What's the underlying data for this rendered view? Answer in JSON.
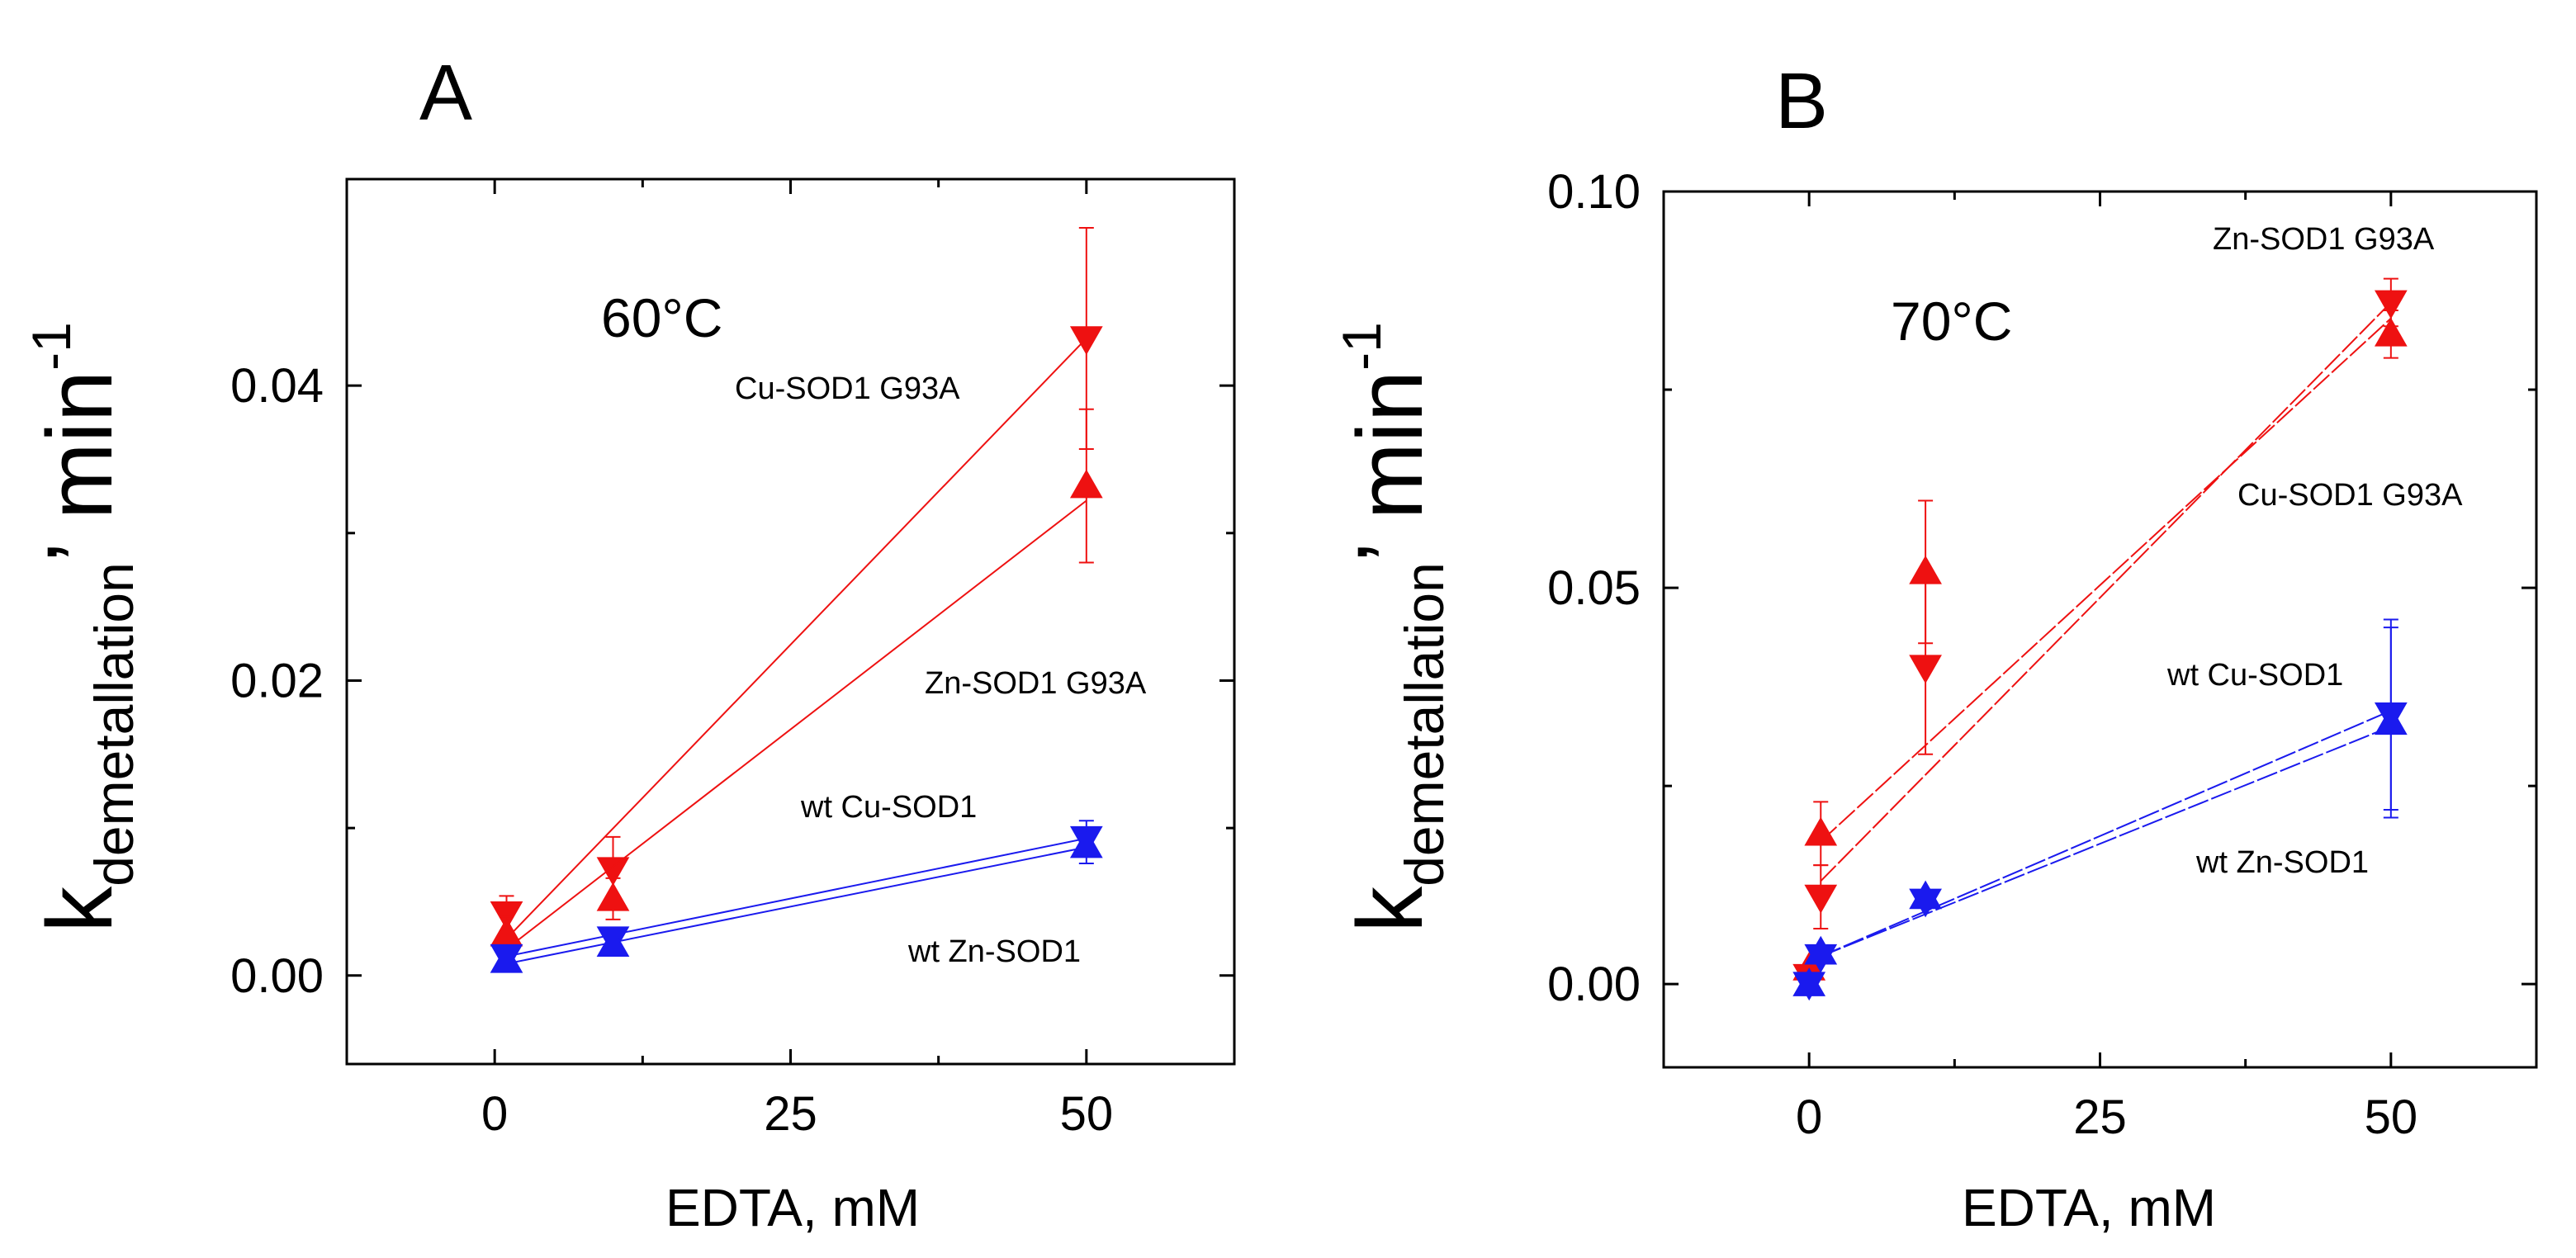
{
  "chart_data": [
    {
      "type": "scatter",
      "panel_label": "A",
      "temperature_label": "60°C",
      "xlabel": "EDTA, mM",
      "ylabel_main": "k",
      "ylabel_sub": "demetallation",
      "ylabel_unit": "’ min",
      "ylabel_exp": "-1",
      "xlim": [
        -12.5,
        62.5
      ],
      "ylim": [
        -0.006,
        0.054
      ],
      "xticks": [
        0,
        25,
        50
      ],
      "xtick_labels": [
        "0",
        "25",
        "50"
      ],
      "yticks": [
        0,
        0.02,
        0.04
      ],
      "ytick_labels": [
        "0.00",
        "0.02",
        "0.04"
      ],
      "series": [
        {
          "name": "Cu-SOD1 G93A",
          "color": "#ee1111",
          "marker": "triangle-down",
          "x": [
            1,
            10,
            50
          ],
          "y": [
            0.0042,
            0.0072,
            0.0432
          ],
          "err": [
            0.0012,
            0.0022,
            0.0075
          ],
          "fit": [
            [
              1,
              0.0025
            ],
            [
              50,
              0.0432
            ]
          ]
        },
        {
          "name": "Zn-SOD1 G93A",
          "color": "#ee1111",
          "marker": "triangle-up",
          "x": [
            1,
            10,
            50
          ],
          "y": [
            0.0028,
            0.0052,
            0.0332
          ],
          "err": [
            0.0012,
            0.0014,
            0.0052
          ],
          "fit": [
            [
              1,
              0.0018
            ],
            [
              50,
              0.0322
            ]
          ]
        },
        {
          "name": "wt Cu-SOD1",
          "color": "#1a1aee",
          "marker": "triangle-down",
          "x": [
            1,
            10,
            50
          ],
          "y": [
            0.0013,
            0.0025,
            0.0093
          ],
          "err": [
            0.0004,
            0.0004,
            0.0012
          ],
          "fit": [
            [
              1,
              0.0013
            ],
            [
              50,
              0.0093
            ]
          ]
        },
        {
          "name": "wt Zn-SOD1",
          "color": "#1a1aee",
          "marker": "triangle-up",
          "x": [
            1,
            10,
            50
          ],
          "y": [
            0.001,
            0.0021,
            0.0088
          ],
          "err": [
            0.0004,
            0.0004,
            0.0012
          ],
          "fit": [
            [
              1,
              0.0008
            ],
            [
              50,
              0.0087
            ]
          ]
        }
      ],
      "annotations": [
        {
          "text": "Cu-SOD1 G93A"
        },
        {
          "text": "Zn-SOD1 G93A"
        },
        {
          "text": "wt Cu-SOD1"
        },
        {
          "text": "wt Zn-SOD1"
        }
      ]
    },
    {
      "type": "scatter",
      "panel_label": "B",
      "temperature_label": "70°C",
      "xlabel": "EDTA, mM",
      "ylabel_main": "k",
      "ylabel_sub": "demetallation",
      "ylabel_unit": "’ min",
      "ylabel_exp": "-1",
      "xlim": [
        -12.5,
        62.5
      ],
      "ylim": [
        -0.0105,
        0.1
      ],
      "xticks": [
        0,
        25,
        50
      ],
      "xtick_labels": [
        "0",
        "25",
        "50"
      ],
      "yticks": [
        0,
        0.05,
        0.1
      ],
      "ytick_labels": [
        "0.00",
        "0.05",
        "0.10"
      ],
      "series": [
        {
          "name": "Zn-SOD1 G93A",
          "color": "#ee1111",
          "marker": "triangle-down",
          "x": [
            0,
            1,
            10,
            50
          ],
          "y": [
            0.001,
            0.011,
            0.04,
            0.086
          ],
          "err": [
            0.0,
            0.004,
            0.011,
            0.003
          ],
          "fit": [
            [
              1,
              0.013
            ],
            [
              50,
              0.086
            ]
          ]
        },
        {
          "name": "Cu-SOD1 G93A",
          "color": "#ee1111",
          "marker": "triangle-up",
          "x": [
            0,
            1,
            10,
            50
          ],
          "y": [
            0.002,
            0.019,
            0.052,
            0.082
          ],
          "err": [
            0.0,
            0.004,
            0.009,
            0.003
          ],
          "fit": [
            [
              1,
              0.018
            ],
            [
              50,
              0.084
            ]
          ]
        },
        {
          "name": "wt Cu-SOD1",
          "color": "#1a1aee",
          "marker": "triangle-down",
          "x": [
            0,
            1,
            10,
            50
          ],
          "y": [
            0.0,
            0.0035,
            0.0105,
            0.034
          ],
          "err": [
            0.0,
            0.0,
            0.0,
            0.012
          ],
          "fit": [
            [
              1,
              0.0035
            ],
            [
              50,
              0.0345
            ]
          ]
        },
        {
          "name": "wt Zn-SOD1",
          "color": "#1a1aee",
          "marker": "triangle-up",
          "x": [
            0,
            1,
            10,
            50
          ],
          "y": [
            0.0,
            0.004,
            0.011,
            0.033
          ],
          "err": [
            0.0,
            0.0,
            0.0,
            0.012
          ],
          "fit": [
            [
              1,
              0.0035
            ],
            [
              50,
              0.0325
            ]
          ]
        }
      ],
      "annotations": [
        {
          "text": "Zn-SOD1 G93A"
        },
        {
          "text": "Cu-SOD1 G93A"
        },
        {
          "text": "wt Cu-SOD1"
        },
        {
          "text": "wt Zn-SOD1"
        }
      ]
    }
  ]
}
